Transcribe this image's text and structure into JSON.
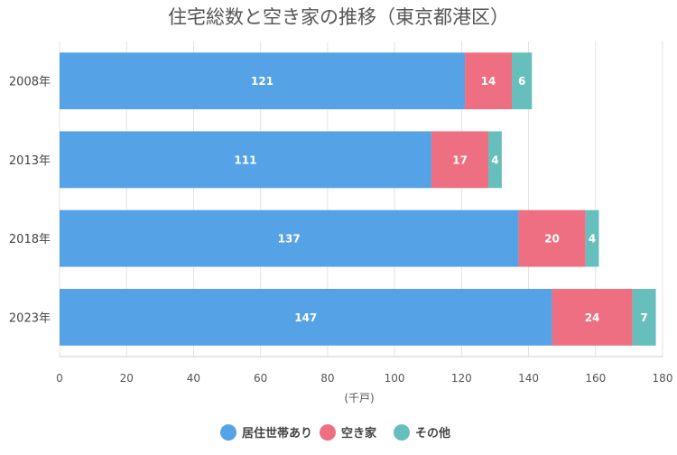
{
  "chart_data": {
    "type": "bar",
    "orientation": "horizontal",
    "stacked": true,
    "title": "住宅総数と空き家の推移（東京都港区）",
    "xlabel": "(千戸)",
    "categories": [
      "2008年",
      "2013年",
      "2018年",
      "2023年"
    ],
    "series": [
      {
        "name": "居住世帯あり",
        "values": [
          121,
          111,
          137,
          147
        ],
        "color": "#55a3e6"
      },
      {
        "name": "空き家",
        "values": [
          14,
          17,
          20,
          24
        ],
        "color": "#ef6f82"
      },
      {
        "name": "その他",
        "values": [
          6,
          4,
          4,
          7
        ],
        "color": "#66bfbd"
      }
    ],
    "xlim": [
      0,
      180
    ],
    "xticks": [
      0,
      20,
      40,
      60,
      80,
      100,
      120,
      140,
      160,
      180
    ],
    "grid": true,
    "legend_position": "bottom"
  }
}
